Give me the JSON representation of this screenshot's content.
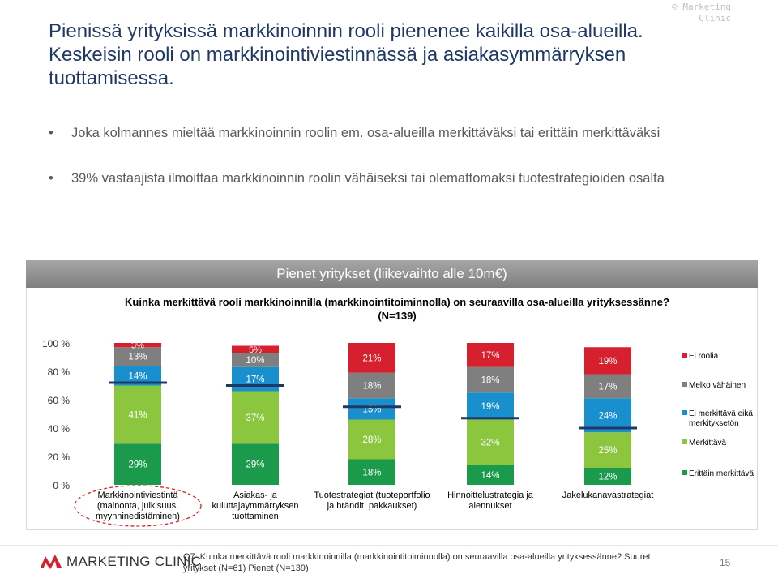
{
  "header": {
    "title": "Pienissä yrityksissä markkinoinnin rooli  pienenee kaikilla osa-alueilla. Keskeisin rooli on markkinointiviestinnässä ja asiakasymmärryksen tuottamisessa.",
    "watermark": "© Marketing Clinic"
  },
  "bullets": [
    "Joka kolmannes mieltää markkinoinnin roolin em. osa-alueilla merkittäväksi tai erittäin merkittäväksi",
    "39% vastaajista ilmoittaa markkinoinnin roolin vähäiseksi tai olemattomaksi tuotestrategioiden osalta"
  ],
  "band_label": "Pienet yritykset (liikevaihto alle 10m€)",
  "chart_data": {
    "type": "bar",
    "stacked": true,
    "title": "Kuinka merkittävä rooli markkinoinnilla (markkinointitoiminnolla) on seuraavilla osa-alueilla yrityksessänne? (N=139)",
    "categories": [
      "Markkinointiviestintä (mainonta, julkisuus, myynninedistäminen)",
      "Asiakas- ja kuluttajaymmärryksen tuottaminen",
      "Tuotestrategiat (tuoteportfolio ja brändit, pakkaukset)",
      "Hinnoittelustrategia ja alennukset",
      "Jakelukanavastrategiat"
    ],
    "y_ticks": [
      "0 %",
      "20 %",
      "40 %",
      "60 %",
      "80 %",
      "100 %"
    ],
    "ylim": [
      0,
      100
    ],
    "grid": false,
    "legend_position": "right",
    "series": [
      {
        "name": "Erittäin merkittävä",
        "color": "#1a9a4a",
        "values": [
          29,
          29,
          18,
          14,
          12
        ],
        "labels": [
          "29%",
          "29%",
          "18%",
          "14%",
          "12%"
        ]
      },
      {
        "name": "Merkittävä",
        "color": "#8cc63f",
        "values": [
          41,
          37,
          28,
          32,
          25
        ],
        "labels": [
          "41%",
          "37%",
          "28%",
          "32%",
          "25%"
        ]
      },
      {
        "name": "Ei merkittävä eikä merkityksetön",
        "color": "#1a8fce",
        "values": [
          14,
          17,
          15,
          19,
          24
        ],
        "labels": [
          "14%",
          "17%",
          "15%",
          "19%",
          "24%"
        ]
      },
      {
        "name": "Melko vähäinen",
        "color": "#7f7f7f",
        "values": [
          13,
          10,
          18,
          18,
          17
        ],
        "labels": [
          "13%",
          "10%",
          "18%",
          "18%",
          "17%"
        ]
      },
      {
        "name": "Ei roolia",
        "color": "#d7202d",
        "values": [
          3,
          5,
          21,
          17,
          19
        ],
        "labels": [
          "3%",
          "5%",
          "21%",
          "17%",
          "19%"
        ]
      }
    ],
    "reference_lines": [
      72,
      70,
      55,
      47,
      40
    ],
    "highlighted_category": 0
  },
  "footer": {
    "brand": "MARKETING CLINIC",
    "note": "Q7: Kuinka merkittävä rooli markkinoinnilla (markkinointitoiminnolla) on seuraavilla osa-alueilla yrityksessänne? Suuret yritykset (N=61) Pienet (N=139)",
    "page": "15"
  },
  "colors": {
    "title": "#1f3864",
    "ellipse": "#d7202d",
    "reference_line": "#1f3864"
  }
}
